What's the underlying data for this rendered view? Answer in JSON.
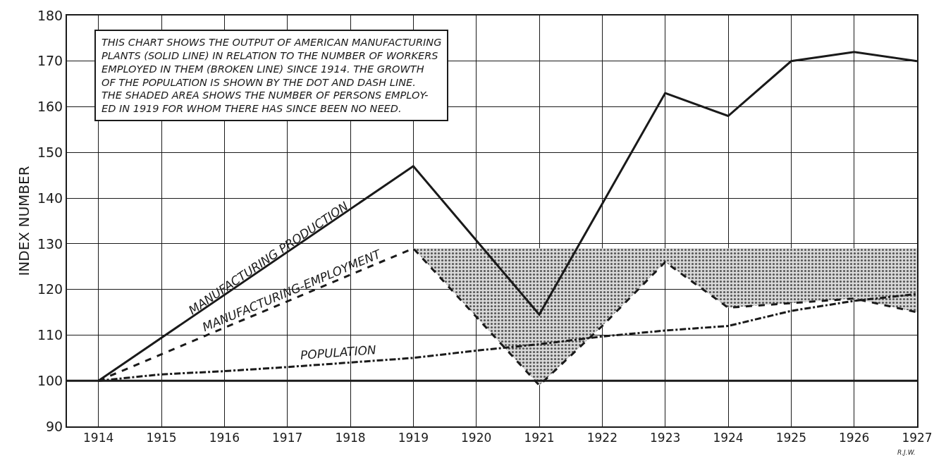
{
  "chart_data": {
    "type": "line",
    "ylabel": "INDEX NUMBER",
    "xlim": [
      1913.5,
      1927
    ],
    "xticks": [
      1914,
      1915,
      1916,
      1917,
      1918,
      1919,
      1920,
      1921,
      1922,
      1923,
      1924,
      1925,
      1926,
      1927
    ],
    "ylim": [
      90,
      180
    ],
    "yticks": [
      90,
      100,
      110,
      120,
      130,
      140,
      150,
      160,
      170,
      180
    ],
    "grid": true,
    "legend": false,
    "marker": "none",
    "series": [
      {
        "name": "MANUFACTURING PRODUCTION",
        "color": "#1a1a1a",
        "line_style": "solid",
        "x": [
          1914,
          1919,
          1921,
          1923,
          1924,
          1925,
          1926,
          1927
        ],
        "values": [
          100,
          147,
          114.5,
          163,
          158,
          170,
          172,
          170
        ]
      },
      {
        "name": "MANUFACTURING-EMPLOYMENT",
        "color": "#1a1a1a",
        "line_style": "dashed",
        "x": [
          1914,
          1919,
          1921,
          1922,
          1923,
          1924,
          1925,
          1926,
          1927
        ],
        "values": [
          100,
          129,
          99,
          112,
          126,
          116,
          117,
          118,
          115
        ],
        "lower": [
          null,
          129,
          99,
          112,
          126,
          116,
          117,
          118,
          115
        ],
        "upper": [
          null,
          129,
          129,
          129,
          129,
          129,
          129,
          129,
          129
        ]
      },
      {
        "name": "POPULATION",
        "color": "#1a1a1a",
        "line_style": "dashdot",
        "x": [
          1914,
          1915,
          1916,
          1917,
          1918,
          1919,
          1920,
          1921,
          1922,
          1923,
          1924,
          1925,
          1926,
          1927
        ],
        "values": [
          100,
          101.4,
          102.1,
          103,
          104,
          105,
          106.6,
          108,
          109.7,
          111,
          112,
          115.3,
          117.5,
          119
        ]
      }
    ],
    "ref_lines": [
      {
        "axis": "y",
        "value": 100,
        "color": "#1a1a1a"
      }
    ],
    "annotations": [
      "THIS CHART SHOWS THE OUTPUT OF AMERICAN MANUFACTURING\nPLANTS (SOLID LINE) IN RELATION TO THE NUMBER OF WORKERS\nEMPLOYED IN THEM (BROKEN LINE) SINCE 1914. THE GROWTH\nOF THE POPULATION IS SHOWN BY THE DOT AND DASH LINE.\nTHE SHADED AREA SHOWS THE NUMBER OF PERSONS EMPLOY-\nED IN 1919 FOR WHOM THERE HAS SINCE BEEN NO NEED.",
      "R.J.W."
    ]
  }
}
